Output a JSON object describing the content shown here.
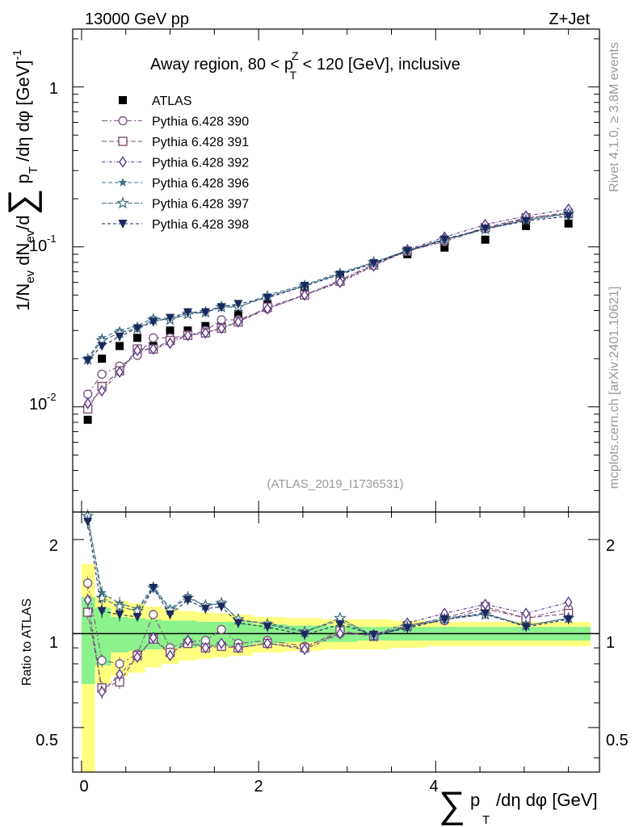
{
  "header": {
    "energy_label": "13000 GeV pp",
    "process_label": "Z+Jet"
  },
  "side_text": {
    "rivet": "Rivet 4.1.0, ≥ 3.8M events",
    "mcplots": "mcplots.cern.ch [arXiv:2401.10621]"
  },
  "chart_data": {
    "type": "scatter",
    "title": "Away region, 80 < p_T^Z < 120 [GeV], inclusive",
    "title_parts": {
      "pre": "Away region, 80 < p",
      "sup": "Z",
      "sub": "T",
      "post": " < 120 [GeV], inclusive"
    },
    "analysis_id": "(ATLAS_2019_I1736531)",
    "xlabel": "∑ p_T /dη dφ [GeV]",
    "xlabel_parts": {
      "sum": "∑",
      "p": "p",
      "sub": "T",
      "rest": "/dη dφ [GeV]"
    },
    "ylabel": "1/N_ev dN_ev/d∑ p_T /dη dφ [GeV]^-1",
    "ratio_ylabel": "Ratio to ATLAS",
    "xlim": [
      -0.1,
      5.85
    ],
    "ylim": [
      0.0022,
      2.3
    ],
    "ratio_ylim": [
      0.36,
      2.45
    ],
    "x_ticks": [
      "0",
      "2",
      "4"
    ],
    "x_tick_values": [
      0,
      2,
      4
    ],
    "y_ticks": [
      "10^-2",
      "10^-1",
      "1"
    ],
    "ratio_y_ticks": [
      "0.5",
      "1",
      "2"
    ],
    "ratio_y_tick_values": [
      0.5,
      1,
      2
    ],
    "legend_position": "top-left",
    "x": [
      0.07,
      0.23,
      0.43,
      0.63,
      0.81,
      1.0,
      1.2,
      1.4,
      1.58,
      1.77,
      2.1,
      2.52,
      2.92,
      3.3,
      3.68,
      4.1,
      4.56,
      5.02,
      5.5
    ],
    "series": [
      {
        "name": "ATLAS",
        "marker": "square-filled",
        "color": "#000000",
        "values": [
          0.0083,
          0.02,
          0.024,
          0.027,
          0.024,
          0.03,
          0.03,
          0.032,
          0.034,
          0.038,
          0.044,
          0.056,
          0.064,
          0.078,
          0.09,
          0.099,
          0.111,
          0.135,
          0.14
        ]
      },
      {
        "name": "Pythia 6.428 390",
        "marker": "circle-open",
        "color": "#7e5a86",
        "values": [
          0.012,
          0.016,
          0.018,
          0.021,
          0.027,
          0.027,
          0.028,
          0.03,
          0.035,
          0.035,
          0.041,
          0.05,
          0.062,
          0.078,
          0.094,
          0.108,
          0.13,
          0.15,
          0.165
        ],
        "ratio": [
          1.45,
          0.82,
          0.8,
          0.86,
          1.15,
          0.9,
          0.94,
          0.95,
          1.03,
          0.93,
          0.95,
          0.91,
          1.0,
          0.99,
          1.06,
          1.1,
          1.2,
          1.12,
          1.2
        ]
      },
      {
        "name": "Pythia 6.428 391",
        "marker": "square-open",
        "color": "#7d4f6a",
        "values": [
          0.0097,
          0.0134,
          0.0168,
          0.023,
          0.023,
          0.026,
          0.028,
          0.029,
          0.031,
          0.034,
          0.042,
          0.05,
          0.061,
          0.077,
          0.094,
          0.11,
          0.132,
          0.152,
          0.162
        ],
        "ratio": [
          1.17,
          0.67,
          0.7,
          0.85,
          0.96,
          0.87,
          0.93,
          0.9,
          0.91,
          0.9,
          0.93,
          0.9,
          1.02,
          0.98,
          1.06,
          1.12,
          1.22,
          1.12,
          1.16
        ]
      },
      {
        "name": "Pythia 6.428 392",
        "marker": "diamond-open",
        "color": "#5b3a8b",
        "values": [
          0.0105,
          0.0126,
          0.0165,
          0.0225,
          0.023,
          0.025,
          0.028,
          0.029,
          0.031,
          0.034,
          0.041,
          0.05,
          0.06,
          0.076,
          0.096,
          0.115,
          0.138,
          0.156,
          0.172
        ],
        "ratio": [
          1.28,
          0.65,
          0.74,
          0.84,
          0.97,
          0.85,
          0.95,
          0.9,
          0.93,
          0.9,
          0.93,
          0.89,
          1.0,
          0.99,
          1.08,
          1.16,
          1.24,
          1.16,
          1.26
        ]
      },
      {
        "name": "Pythia 6.428 396",
        "marker": "star-filled",
        "color": "#3e6f86",
        "values": [
          0.02,
          0.027,
          0.03,
          0.032,
          0.036,
          0.035,
          0.039,
          0.039,
          0.043,
          0.042,
          0.05,
          0.058,
          0.069,
          0.08,
          0.095,
          0.112,
          0.13,
          0.148,
          0.162
        ],
        "ratio": [
          2.35,
          1.35,
          1.25,
          1.2,
          1.42,
          1.2,
          1.32,
          1.22,
          1.26,
          1.1,
          1.08,
          1.02,
          1.1,
          0.98,
          1.06,
          1.12,
          1.16,
          1.06,
          1.12
        ]
      },
      {
        "name": "Pythia 6.428 397",
        "marker": "star-open",
        "color": "#3e6a80",
        "values": [
          0.0198,
          0.026,
          0.029,
          0.031,
          0.035,
          0.035,
          0.038,
          0.039,
          0.042,
          0.042,
          0.049,
          0.057,
          0.068,
          0.08,
          0.095,
          0.111,
          0.129,
          0.147,
          0.161
        ],
        "ratio": [
          2.38,
          1.3,
          1.22,
          1.18,
          1.4,
          1.19,
          1.3,
          1.23,
          1.25,
          1.11,
          1.07,
          1.01,
          1.12,
          0.98,
          1.05,
          1.11,
          1.15,
          1.06,
          1.12
        ]
      },
      {
        "name": "Pythia 6.428 398",
        "marker": "triangle-down-filled",
        "color": "#1b2a5e",
        "values": [
          0.0195,
          0.024,
          0.0275,
          0.031,
          0.034,
          0.036,
          0.039,
          0.039,
          0.042,
          0.044,
          0.048,
          0.057,
          0.067,
          0.079,
          0.094,
          0.111,
          0.13,
          0.145,
          0.156
        ],
        "ratio": [
          2.28,
          1.18,
          1.15,
          1.13,
          1.4,
          1.15,
          1.28,
          1.2,
          1.22,
          1.08,
          1.05,
          0.99,
          1.07,
          0.99,
          1.04,
          1.11,
          1.16,
          1.05,
          1.11
        ]
      }
    ],
    "ratio_band_inner": [
      0.31,
      0.21,
      0.13,
      0.12,
      0.11,
      0.1,
      0.1,
      0.09,
      0.09,
      0.09,
      0.07,
      0.06,
      0.06,
      0.05,
      0.05,
      0.05,
      0.05,
      0.05,
      0.05
    ],
    "ratio_band_outer": [
      0.67,
      0.31,
      0.27,
      0.25,
      0.22,
      0.2,
      0.18,
      0.17,
      0.16,
      0.15,
      0.13,
      0.12,
      0.11,
      0.11,
      0.1,
      0.09,
      0.09,
      0.09,
      0.09
    ]
  }
}
